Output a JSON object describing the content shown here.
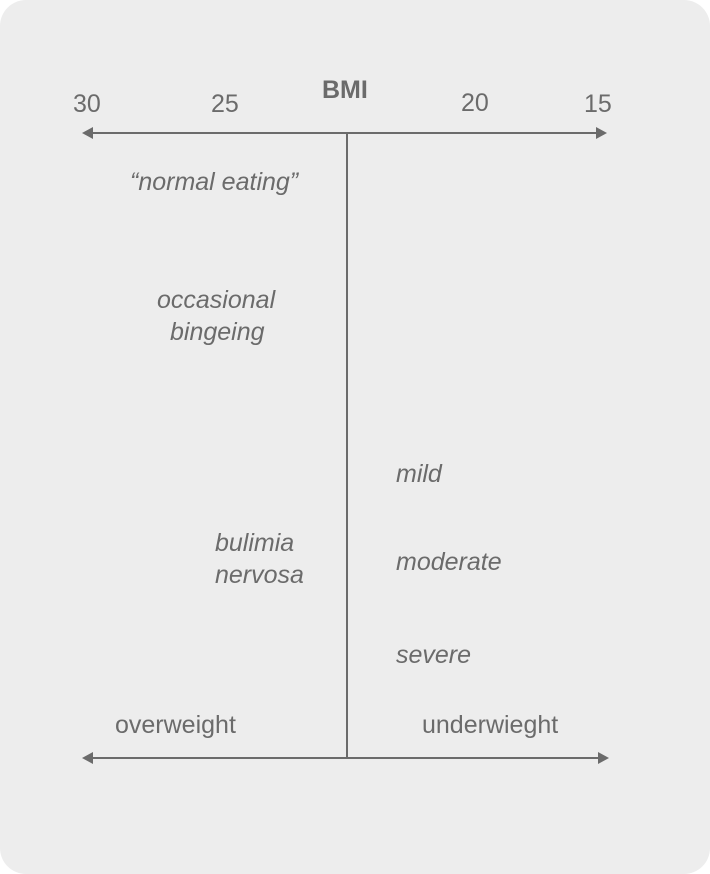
{
  "axis": {
    "title": "BMI",
    "ticks": [
      "30",
      "25",
      "20",
      "15"
    ]
  },
  "left_labels": {
    "normal": "“normal eating”",
    "occasional_1": "occasional",
    "occasional_2": "bingeing",
    "bulimia_1": "bulimia",
    "bulimia_2": "nervosa"
  },
  "right_labels": {
    "mild": "mild",
    "moderate": "moderate",
    "severe": "severe"
  },
  "bottom": {
    "left": "overweight",
    "right": "underwieght"
  },
  "colors": {
    "background": "#ededed",
    "ink": "#6b6b6b"
  }
}
